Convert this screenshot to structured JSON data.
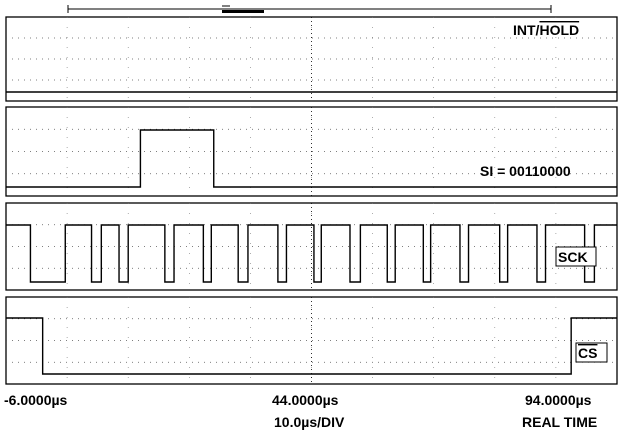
{
  "chart_data": {
    "type": "line",
    "title": "",
    "xlabel": "",
    "ylabel": "",
    "x_unit": "µs",
    "xlim": [
      -6.0,
      94.0
    ],
    "x_divisions": 10,
    "grid": true,
    "axis_labels": {
      "left": "-6.0000",
      "center": "44.0000",
      "right": "94.0000",
      "unit": "µs",
      "timebase": "10.0",
      "timebase_unit": "µs/DIV",
      "mode": "REAL TIME"
    },
    "channels": [
      {
        "name": "INT/HOLD",
        "label_prefix": "INT/",
        "label_overbar": "HOLD",
        "label_position": "top-right",
        "levels": {
          "low": 0,
          "high": 1
        },
        "initial": 0,
        "transitions": []
      },
      {
        "name": "SI = 00110000",
        "label_prefix": "SI = 00110000",
        "label_overbar": "",
        "label_position": "bottom-right",
        "levels": {
          "low": 0,
          "high": 1
        },
        "initial": 0,
        "transitions": [
          [
            16.0,
            1
          ],
          [
            28.0,
            0
          ]
        ]
      },
      {
        "name": "SCK",
        "label_prefix": "SCK",
        "label_overbar": "",
        "label_position": "right",
        "boxed": true,
        "levels": {
          "low": 0,
          "high": 1
        },
        "initial": 1,
        "transitions": [
          [
            -2.0,
            0
          ],
          [
            3.7,
            1
          ],
          [
            8.0,
            0
          ],
          [
            9.6,
            1
          ],
          [
            12.5,
            0
          ],
          [
            14.0,
            1
          ],
          [
            20.0,
            0
          ],
          [
            21.5,
            1
          ],
          [
            26.3,
            0
          ],
          [
            27.6,
            1
          ],
          [
            32.0,
            0
          ],
          [
            33.6,
            1
          ],
          [
            38.5,
            0
          ],
          [
            39.9,
            1
          ],
          [
            44.4,
            0
          ],
          [
            45.6,
            1
          ],
          [
            50.3,
            0
          ],
          [
            52.0,
            1
          ],
          [
            56.4,
            0
          ],
          [
            57.7,
            1
          ],
          [
            62.3,
            0
          ],
          [
            63.5,
            1
          ],
          [
            68.3,
            0
          ],
          [
            69.7,
            1
          ],
          [
            74.8,
            0
          ],
          [
            76.1,
            1
          ],
          [
            80.9,
            0
          ],
          [
            82.3,
            1
          ],
          [
            88.7,
            0
          ],
          [
            90.3,
            1
          ]
        ]
      },
      {
        "name": "CS",
        "label_prefix": "",
        "label_overbar": "CS",
        "label_position": "bottom-right",
        "boxed": true,
        "levels": {
          "low": 0,
          "high": 1
        },
        "initial": 1,
        "transitions": [
          [
            0.0,
            0
          ],
          [
            86.5,
            1
          ]
        ]
      }
    ]
  }
}
